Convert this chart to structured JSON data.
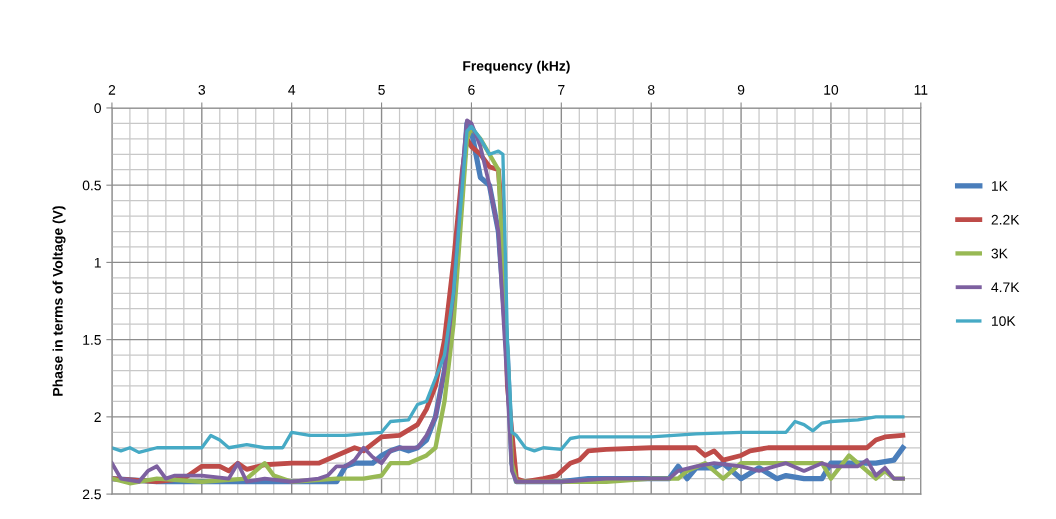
{
  "chart_data": {
    "type": "line",
    "xlabel": "Frequency (kHz)",
    "ylabel": "Phase in terms of Voltage (V)",
    "xlim": [
      2,
      11
    ],
    "xticks": [
      2,
      3,
      4,
      5,
      6,
      7,
      8,
      9,
      10,
      11
    ],
    "ylim": [
      2.5,
      0
    ],
    "yticks": [
      0,
      0.5,
      1,
      1.5,
      2,
      2.5
    ],
    "grid": true,
    "legend": "right",
    "marker": "none",
    "line_style": "solid",
    "series": [
      {
        "name": "1K",
        "color": "#4a7ebb",
        "x": [
          2.0,
          2.5,
          3.0,
          3.5,
          4.0,
          4.5,
          4.6,
          4.7,
          4.9,
          5.0,
          5.1,
          5.2,
          5.3,
          5.4,
          5.5,
          5.6,
          5.7,
          5.8,
          5.9,
          5.95,
          6.0,
          6.1,
          6.2,
          6.3,
          6.4,
          6.45,
          6.5,
          7.0,
          7.3,
          7.5,
          8.0,
          8.2,
          8.3,
          8.4,
          8.5,
          8.7,
          8.8,
          9.0,
          9.2,
          9.4,
          9.5,
          9.7,
          9.9,
          10.0,
          10.5,
          10.7,
          10.8
        ],
        "values": [
          2.4,
          2.42,
          2.42,
          2.42,
          2.42,
          2.42,
          2.32,
          2.3,
          2.3,
          2.25,
          2.22,
          2.2,
          2.22,
          2.2,
          2.15,
          2.0,
          1.7,
          1.2,
          0.5,
          0.1,
          0.15,
          0.45,
          0.5,
          0.8,
          1.6,
          2.3,
          2.42,
          2.42,
          2.4,
          2.4,
          2.4,
          2.4,
          2.32,
          2.4,
          2.33,
          2.33,
          2.3,
          2.4,
          2.33,
          2.4,
          2.38,
          2.4,
          2.4,
          2.3,
          2.3,
          2.28,
          2.2
        ]
      },
      {
        "name": "2.2K",
        "color": "#be4b48",
        "x": [
          2.0,
          2.5,
          2.8,
          3.0,
          3.2,
          3.3,
          3.4,
          3.5,
          3.7,
          4.0,
          4.3,
          4.5,
          4.7,
          4.8,
          5.0,
          5.2,
          5.4,
          5.5,
          5.6,
          5.7,
          5.8,
          5.9,
          5.95,
          6.0,
          6.1,
          6.2,
          6.3,
          6.35,
          6.4,
          6.5,
          6.6,
          6.8,
          6.95,
          7.1,
          7.2,
          7.3,
          7.5,
          8.0,
          8.5,
          8.6,
          8.7,
          8.8,
          9.0,
          9.1,
          9.3,
          10.0,
          10.4,
          10.5,
          10.6,
          10.8
        ],
        "values": [
          2.4,
          2.42,
          2.4,
          2.32,
          2.32,
          2.35,
          2.3,
          2.34,
          2.31,
          2.3,
          2.3,
          2.25,
          2.2,
          2.22,
          2.13,
          2.12,
          2.05,
          1.95,
          1.8,
          1.5,
          1.0,
          0.4,
          0.2,
          0.25,
          0.3,
          0.38,
          0.4,
          0.8,
          1.8,
          2.4,
          2.42,
          2.4,
          2.38,
          2.3,
          2.28,
          2.22,
          2.21,
          2.2,
          2.2,
          2.25,
          2.22,
          2.28,
          2.25,
          2.22,
          2.2,
          2.2,
          2.2,
          2.15,
          2.13,
          2.12
        ]
      },
      {
        "name": "3K",
        "color": "#98b954",
        "x": [
          2.0,
          2.2,
          2.5,
          3.0,
          3.5,
          3.7,
          3.8,
          4.0,
          4.5,
          4.8,
          5.0,
          5.1,
          5.3,
          5.5,
          5.6,
          5.7,
          5.8,
          5.9,
          5.95,
          6.0,
          6.1,
          6.2,
          6.3,
          6.4,
          6.45,
          6.5,
          7.0,
          7.5,
          8.0,
          8.3,
          8.4,
          8.6,
          8.8,
          9.0,
          9.2,
          9.5,
          9.9,
          10.0,
          10.2,
          10.4,
          10.5,
          10.6,
          10.7,
          10.8
        ],
        "values": [
          2.4,
          2.43,
          2.4,
          2.42,
          2.4,
          2.3,
          2.38,
          2.42,
          2.4,
          2.4,
          2.38,
          2.3,
          2.3,
          2.25,
          2.2,
          1.9,
          1.4,
          0.6,
          0.2,
          0.13,
          0.2,
          0.3,
          0.4,
          1.6,
          2.3,
          2.42,
          2.42,
          2.42,
          2.4,
          2.4,
          2.35,
          2.3,
          2.4,
          2.3,
          2.3,
          2.3,
          2.3,
          2.4,
          2.25,
          2.35,
          2.4,
          2.35,
          2.4,
          2.4
        ]
      },
      {
        "name": "4.7K",
        "color": "#7d60a0",
        "x": [
          2.0,
          2.1,
          2.3,
          2.4,
          2.5,
          2.6,
          2.7,
          3.0,
          3.3,
          3.4,
          3.5,
          3.7,
          4.0,
          4.3,
          4.4,
          4.5,
          4.6,
          4.7,
          4.8,
          4.9,
          5.0,
          5.1,
          5.2,
          5.4,
          5.5,
          5.6,
          5.7,
          5.8,
          5.9,
          5.95,
          6.0,
          6.1,
          6.2,
          6.3,
          6.4,
          6.45,
          6.5,
          7.0,
          7.5,
          8.0,
          8.2,
          8.3,
          8.5,
          8.7,
          9.0,
          9.2,
          9.5,
          9.7,
          9.9,
          10.0,
          10.3,
          10.4,
          10.5,
          10.6,
          10.7,
          10.8
        ],
        "values": [
          2.3,
          2.4,
          2.42,
          2.35,
          2.32,
          2.4,
          2.38,
          2.38,
          2.4,
          2.3,
          2.42,
          2.4,
          2.42,
          2.4,
          2.38,
          2.32,
          2.32,
          2.28,
          2.2,
          2.26,
          2.3,
          2.22,
          2.2,
          2.2,
          2.12,
          2.0,
          1.7,
          1.2,
          0.4,
          0.08,
          0.1,
          0.25,
          0.5,
          0.8,
          1.8,
          2.35,
          2.42,
          2.42,
          2.4,
          2.4,
          2.4,
          2.35,
          2.32,
          2.3,
          2.32,
          2.35,
          2.3,
          2.35,
          2.3,
          2.32,
          2.32,
          2.28,
          2.38,
          2.33,
          2.4,
          2.4
        ]
      },
      {
        "name": "10K",
        "color": "#46aac5",
        "x": [
          2.0,
          2.1,
          2.2,
          2.3,
          2.5,
          3.0,
          3.1,
          3.2,
          3.3,
          3.5,
          3.7,
          3.9,
          4.0,
          4.2,
          4.4,
          4.6,
          5.0,
          5.1,
          5.3,
          5.4,
          5.5,
          5.6,
          5.7,
          5.8,
          5.9,
          5.95,
          6.0,
          6.1,
          6.2,
          6.3,
          6.35,
          6.4,
          6.45,
          6.5,
          6.6,
          6.7,
          6.8,
          7.0,
          7.1,
          7.2,
          8.0,
          8.5,
          9.0,
          9.5,
          9.6,
          9.7,
          9.8,
          9.9,
          10.0,
          10.3,
          10.5,
          10.8
        ],
        "values": [
          2.2,
          2.22,
          2.2,
          2.23,
          2.2,
          2.2,
          2.12,
          2.15,
          2.2,
          2.18,
          2.2,
          2.2,
          2.1,
          2.12,
          2.12,
          2.12,
          2.1,
          2.03,
          2.02,
          1.92,
          1.9,
          1.75,
          1.6,
          1.2,
          0.5,
          0.15,
          0.12,
          0.2,
          0.3,
          0.28,
          0.3,
          1.5,
          2.1,
          2.12,
          2.2,
          2.22,
          2.2,
          2.21,
          2.14,
          2.13,
          2.13,
          2.11,
          2.1,
          2.1,
          2.03,
          2.05,
          2.09,
          2.04,
          2.03,
          2.02,
          2.0,
          2.0
        ]
      }
    ]
  }
}
